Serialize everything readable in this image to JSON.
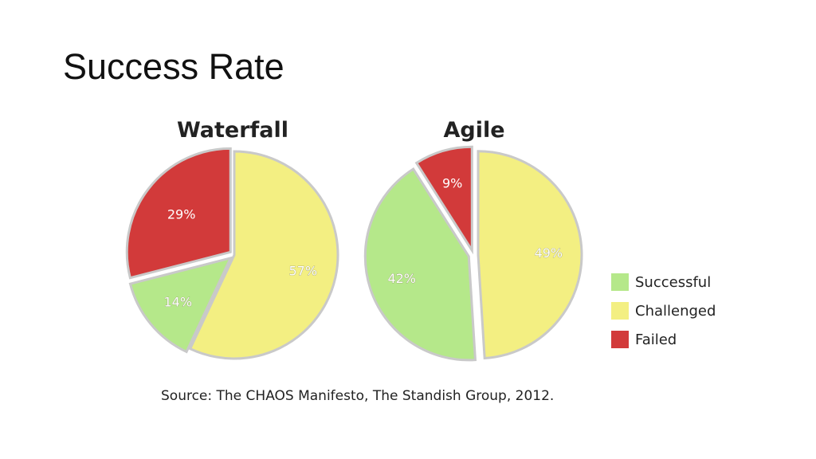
{
  "title": "Success Rate",
  "source": "Source: The CHAOS Manifesto, The Standish Group, 2012.",
  "colors": {
    "Successful": "#b5e88a",
    "Challenged": "#f3ef82",
    "Failed": "#d23a3a"
  },
  "legend": [
    "Successful",
    "Challenged",
    "Failed"
  ],
  "chart_data": [
    {
      "type": "pie",
      "title": "Waterfall",
      "slices": [
        {
          "name": "Challenged",
          "value": 57,
          "label": "57%"
        },
        {
          "name": "Successful",
          "value": 14,
          "label": "14%"
        },
        {
          "name": "Failed",
          "value": 29,
          "label": "29%"
        }
      ]
    },
    {
      "type": "pie",
      "title": "Agile",
      "slices": [
        {
          "name": "Challenged",
          "value": 49,
          "label": "49%"
        },
        {
          "name": "Successful",
          "value": 42,
          "label": "42%"
        },
        {
          "name": "Failed",
          "value": 9,
          "label": "9%"
        }
      ]
    }
  ]
}
